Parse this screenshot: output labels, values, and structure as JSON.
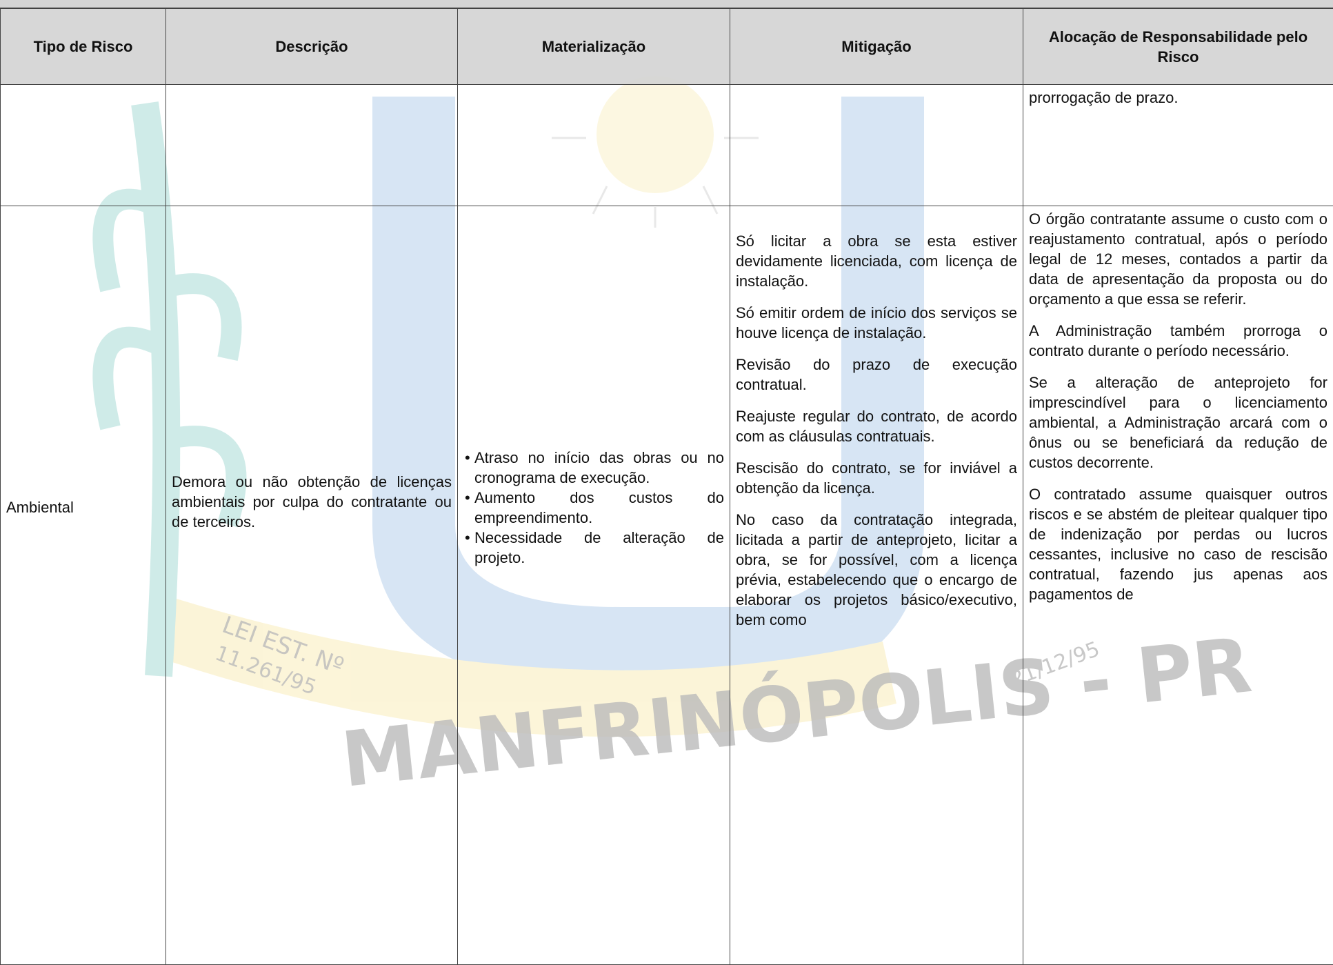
{
  "table": {
    "headers": [
      "Tipo de Risco",
      "Descrição",
      "Materialização",
      "Mitigação",
      "Alocação de Responsabilidade pelo Risco"
    ],
    "rows": [
      {
        "allocation": [
          "prorrogação de prazo."
        ]
      },
      {
        "type": "Ambiental",
        "description": "Demora ou não obtenção de licenças ambientais por culpa do contratante ou de terceiros.",
        "materialization": [
          "Atraso no início das obras ou no cronograma de execução.",
          "Aumento dos custos do empreendimento.",
          "Necessidade de alteração de projeto."
        ],
        "mitigation": [
          "Só licitar a obra se esta estiver devidamente licenciada, com licença de instalação.",
          "Só emitir ordem de início dos serviços se houve licença de instalação.",
          "Revisão do prazo de execução contratual.",
          "Reajuste regular do contrato, de acordo com as cláusulas contratuais.",
          "Rescisão do contrato, se for inviável a obtenção da licença.",
          "No caso da contratação integrada, licitada a partir de anteprojeto, licitar a obra, se for possível, com a licença prévia, estabelecendo que o encargo de elaborar os projetos básico/executivo, bem como"
        ],
        "allocation": [
          "O órgão contratante assume o custo com o reajustamento contratual, após o período legal de 12 meses, contados a partir da data de apresentação da proposta ou do orçamento a que essa se referir.",
          "A Administração também prorroga o contrato durante o período necessário.",
          "Se a alteração de anteprojeto for imprescindível para o licenciamento ambiental, a Administração arcará com o ônus ou se beneficiará da redução de custos decorrente.",
          "O contratado assume quaisquer outros riscos e se abstém de pleitear qualquer tipo de indenização por perdas ou lucros cessantes, inclusive no caso de rescisão contratual, fazendo jus apenas aos pagamentos de"
        ]
      }
    ]
  },
  "watermark": {
    "law": "LEI EST. Nº",
    "law_number": "11.261/95",
    "date": "21/12/95",
    "name": "MANFRINÓPOLIS - PR"
  }
}
